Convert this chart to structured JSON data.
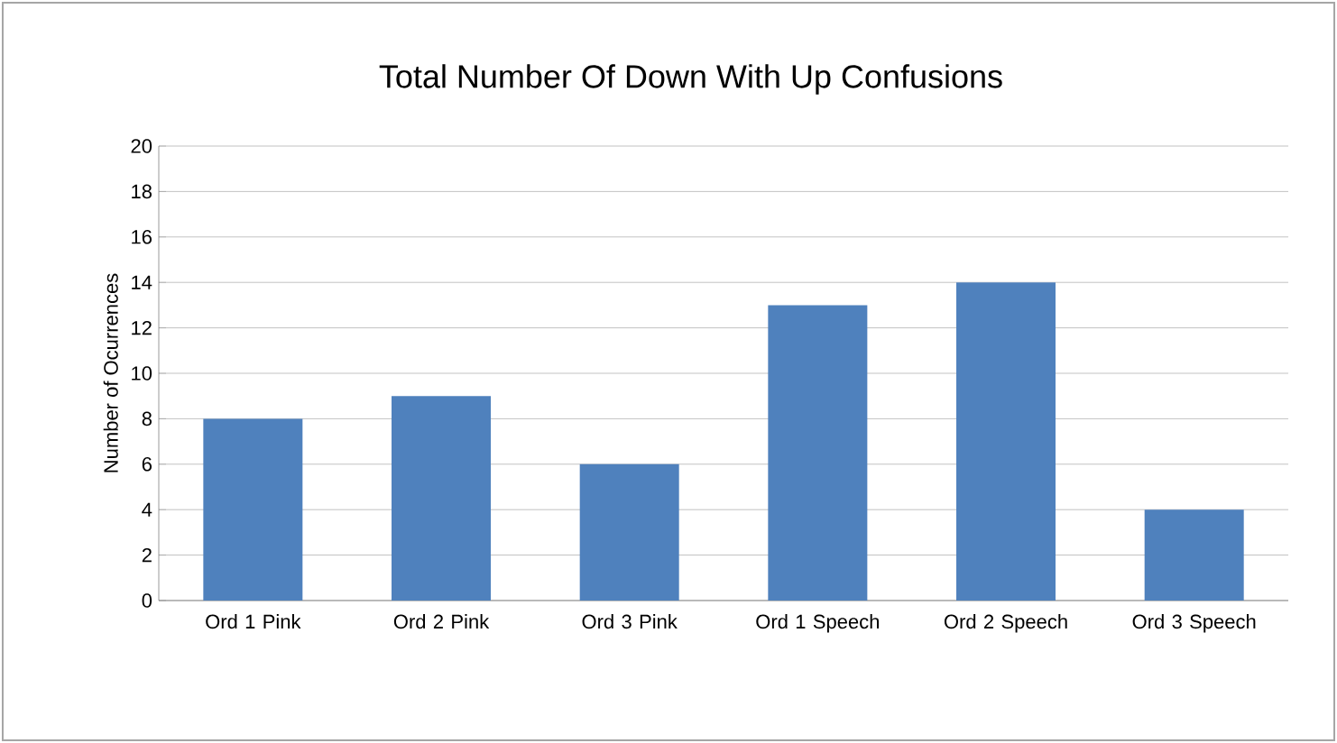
{
  "chart_data": {
    "type": "bar",
    "title": "Total Number Of Down With Up Confusions",
    "ylabel": "Number of Ocurrences",
    "categories": [
      "Ord 1 Pink",
      "Ord 2 Pink",
      "Ord 3 Pink",
      "Ord 1 Speech",
      "Ord 2 Speech",
      "Ord 3 Speech"
    ],
    "values": [
      8,
      9,
      6,
      13,
      14,
      4
    ],
    "color": "#4f81bd",
    "ylim": [
      0,
      20
    ],
    "yticks": [
      0,
      2,
      4,
      6,
      8,
      10,
      12,
      14,
      16,
      18,
      20
    ],
    "grid": "y"
  }
}
